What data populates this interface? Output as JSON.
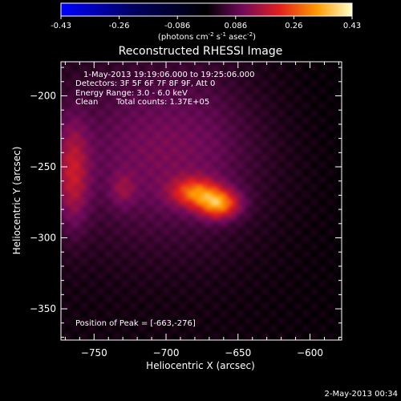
{
  "colorbar": {
    "ticks": [
      "-0.43",
      "-0.26",
      "-0.086",
      "0.086",
      "0.26",
      "0.43"
    ],
    "units_main": "(photons cm",
    "units_sup1": "-2",
    "units_mid": " s",
    "units_sup2": "-1",
    "units_end": " asec",
    "units_sup3": "-2",
    "units_close": ")"
  },
  "chart_data": {
    "type": "heatmap",
    "title": "Reconstructed RHESSI Image",
    "xlabel": "Heliocentric X (arcsec)",
    "ylabel": "Heliocentric Y (arcsec)",
    "xlim": [
      -773,
      -578
    ],
    "ylim": [
      -372,
      -176
    ],
    "x_ticks": [
      -750,
      -700,
      -650,
      -600
    ],
    "y_ticks": [
      -200,
      -250,
      -300,
      -350
    ],
    "x_tick_labels": [
      "−750",
      "−700",
      "−650",
      "−600"
    ],
    "y_tick_labels": [
      "−200",
      "−250",
      "−300",
      "−350"
    ],
    "value_range": [
      -0.43,
      0.43
    ],
    "sources": [
      {
        "x": -663,
        "y": -276,
        "sigma_x": 10,
        "sigma_y": 7,
        "amp": 0.26
      },
      {
        "x": -680,
        "y": -268,
        "sigma_x": 11,
        "sigma_y": 7,
        "amp": 0.2
      },
      {
        "x": -765,
        "y": -255,
        "sigma_x": 8,
        "sigma_y": 26,
        "amp": 0.13
      },
      {
        "x": -730,
        "y": -266,
        "sigma_x": 6,
        "sigma_y": 8,
        "amp": 0.06
      },
      {
        "x": -700,
        "y": -240,
        "sigma_x": 55,
        "sigma_y": 45,
        "amp": 0.1
      }
    ],
    "annotations": {
      "time_range": "1-May-2013 19:19:06.000 to 19:25:06.000",
      "detectors": "Detectors: 3F 5F 6F 7F 8F 9F, Att 0",
      "energy": "Energy Range: 3.0 - 6.0 keV",
      "clean_label": "Clean",
      "total_counts": "Total counts: 1.37E+05",
      "peak": "Position of Peak = [-663,-276]"
    }
  },
  "footer": {
    "timestamp": "2-May-2013 00:34"
  }
}
